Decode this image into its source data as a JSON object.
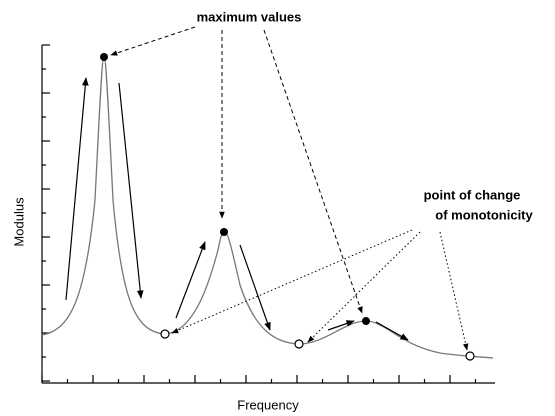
{
  "annotations": {
    "maximum": "maximum values",
    "change": [
      "point of change",
      "of monotonicity"
    ]
  },
  "axes": {
    "x_label": "Frequency",
    "y_label": "Modulus"
  }
}
